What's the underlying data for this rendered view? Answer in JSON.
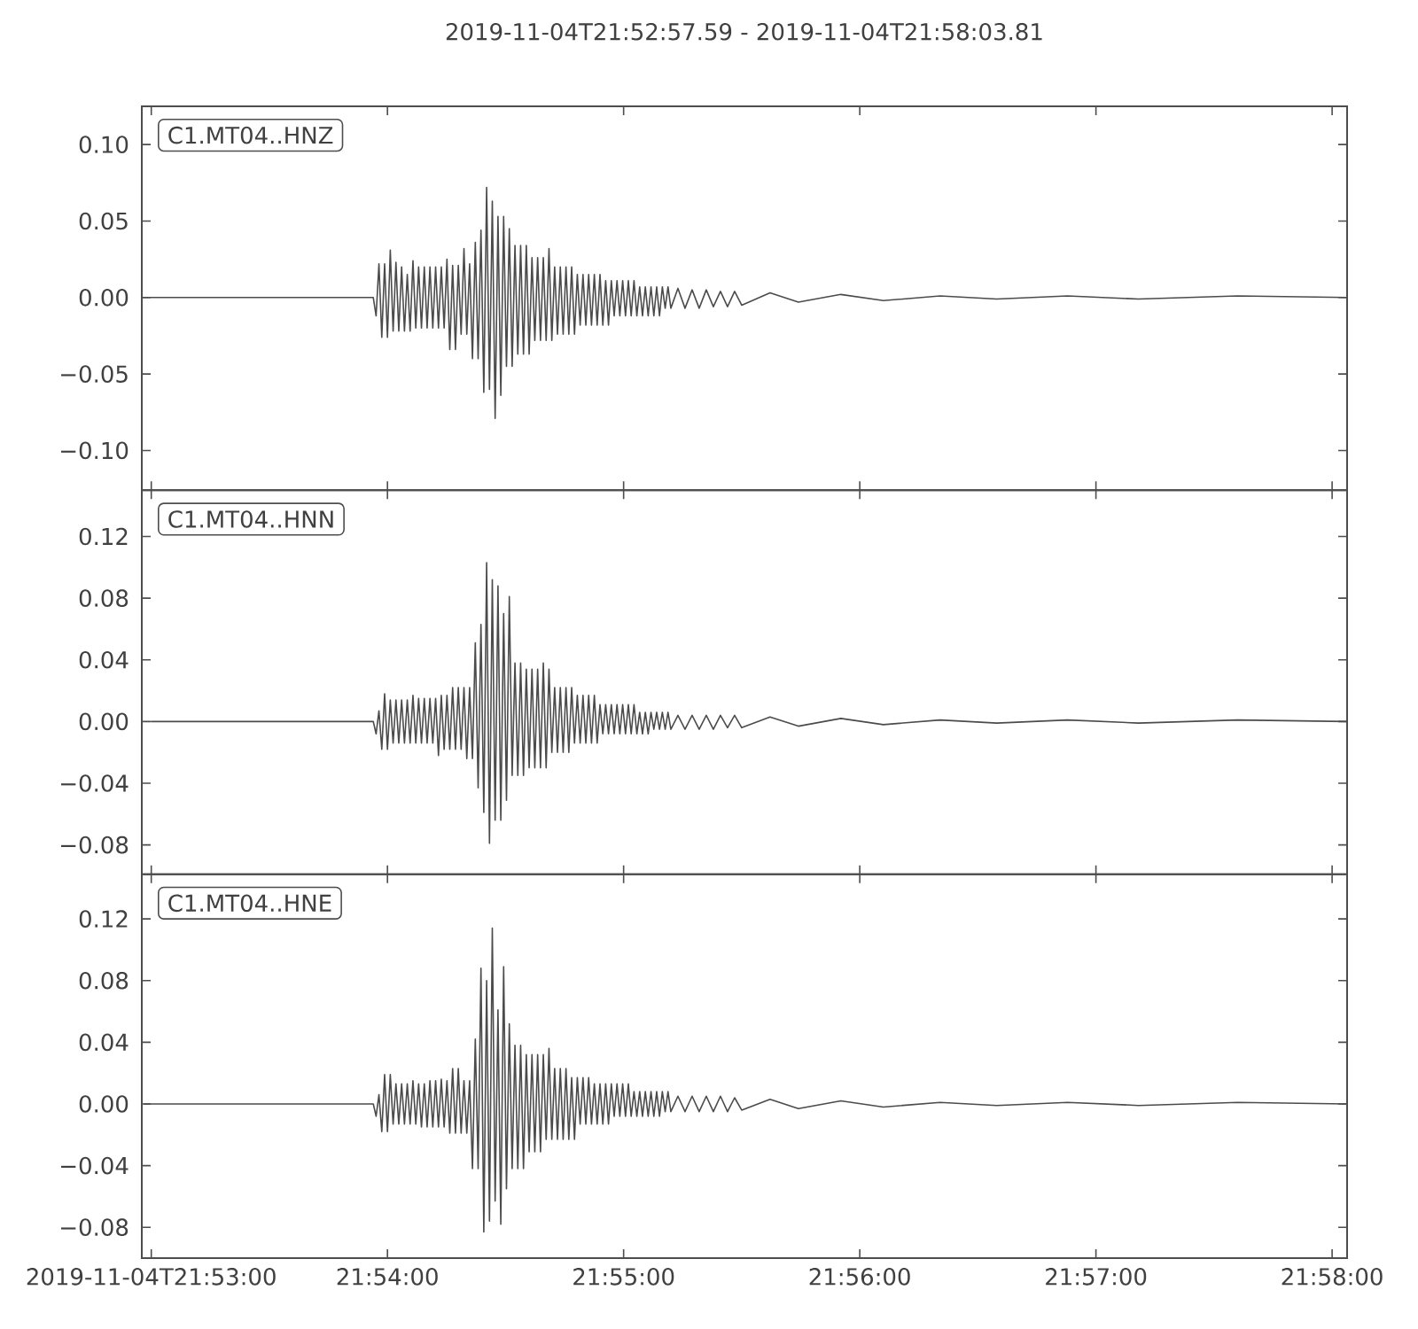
{
  "chart_data": [
    {
      "type": "line",
      "title": "2019-11-04T21:52:57.59 - 2019-11-04T21:58:03.81",
      "annotations": [
        "C1.MT04..HNZ"
      ],
      "color": "#4b4b4b",
      "tick_labels": "y",
      "xlim": [
        21.882664,
        21.967725
      ],
      "ylim": [
        -0.126,
        0.125
      ],
      "xticks": [
        {
          "value": 21.883333,
          "label": null
        },
        {
          "value": 21.9,
          "label": null
        },
        {
          "value": 21.916667,
          "label": null
        },
        {
          "value": 21.933333,
          "label": null
        },
        {
          "value": 21.95,
          "label": null
        },
        {
          "value": 21.966667,
          "label": null
        }
      ],
      "yticks": [
        {
          "value": -0.1,
          "label": "−0.10"
        },
        {
          "value": -0.05,
          "label": "−0.05"
        },
        {
          "value": 0,
          "label": "0.00"
        },
        {
          "value": 0.05,
          "label": "0.05"
        },
        {
          "value": 0.1,
          "label": "0.10"
        }
      ],
      "x": [
        21.8827,
        21.899,
        21.8992,
        21.8994,
        21.8996,
        21.8998,
        21.9,
        21.9002,
        21.9004,
        21.9006,
        21.9008,
        21.901,
        21.9012,
        21.9014,
        21.9016,
        21.9018,
        21.902,
        21.9022,
        21.9024,
        21.9026,
        21.9028,
        21.903,
        21.9032,
        21.9034,
        21.9036,
        21.9038,
        21.904,
        21.9042,
        21.9044,
        21.9046,
        21.9048,
        21.905,
        21.9052,
        21.9054,
        21.9056,
        21.9058,
        21.906,
        21.9062,
        21.9064,
        21.9066,
        21.9068,
        21.907,
        21.9072,
        21.9074,
        21.9076,
        21.9078,
        21.908,
        21.9082,
        21.9084,
        21.9086,
        21.9088,
        21.909,
        21.9092,
        21.9094,
        21.9096,
        21.9098,
        21.91,
        21.9102,
        21.9104,
        21.9106,
        21.9108,
        21.911,
        21.9112,
        21.9114,
        21.9116,
        21.9118,
        21.912,
        21.9122,
        21.9124,
        21.9126,
        21.9128,
        21.913,
        21.9132,
        21.9134,
        21.9136,
        21.9138,
        21.914,
        21.9142,
        21.9144,
        21.9146,
        21.9148,
        21.915,
        21.9152,
        21.9154,
        21.9156,
        21.9158,
        21.916,
        21.9162,
        21.9164,
        21.9166,
        21.9168,
        21.917,
        21.9172,
        21.9174,
        21.9176,
        21.9178,
        21.918,
        21.9182,
        21.9184,
        21.9186,
        21.9188,
        21.919,
        21.9192,
        21.9194,
        21.9196,
        21.9198,
        21.92,
        21.9205,
        21.921,
        21.9215,
        21.922,
        21.9225,
        21.923,
        21.9235,
        21.924,
        21.9245,
        21.925,
        21.927,
        21.929,
        21.932,
        21.935,
        21.939,
        21.943,
        21.948,
        21.953,
        21.96,
        21.9677
      ],
      "values": [
        0,
        0,
        -0.012,
        0.022,
        -0.026,
        0.022,
        -0.026,
        0.031,
        -0.022,
        0.023,
        -0.022,
        0.02,
        -0.022,
        0.015,
        -0.022,
        0.024,
        -0.02,
        0.02,
        -0.02,
        0.02,
        -0.02,
        0.02,
        -0.02,
        0.02,
        -0.02,
        0.02,
        -0.02,
        0.025,
        -0.034,
        0.021,
        -0.034,
        0.021,
        -0.024,
        0.032,
        -0.024,
        0.022,
        -0.04,
        0.036,
        -0.04,
        0.044,
        -0.062,
        0.072,
        -0.06,
        0.063,
        -0.079,
        0.053,
        -0.064,
        0.053,
        -0.045,
        0.045,
        -0.045,
        0.034,
        -0.037,
        0.034,
        -0.037,
        0.034,
        -0.037,
        0.026,
        -0.028,
        0.026,
        -0.028,
        0.026,
        -0.028,
        0.032,
        -0.028,
        0.02,
        -0.024,
        0.02,
        -0.024,
        0.02,
        -0.024,
        0.02,
        -0.024,
        0.015,
        -0.018,
        0.015,
        -0.018,
        0.015,
        -0.018,
        0.015,
        -0.018,
        0.015,
        -0.018,
        0.011,
        -0.018,
        0.011,
        -0.012,
        0.011,
        -0.012,
        0.011,
        -0.012,
        0.011,
        -0.012,
        0.011,
        -0.012,
        0.007,
        -0.012,
        0.007,
        -0.012,
        0.007,
        -0.012,
        0.007,
        -0.012,
        0.007,
        -0.007,
        0.007,
        -0.007,
        0.006,
        -0.007,
        0.005,
        -0.007,
        0.005,
        -0.006,
        0.004,
        -0.006,
        0.004,
        -0.005,
        0.003,
        -0.003,
        0.002,
        -0.002,
        0.001,
        -0.001,
        0.001,
        -0.001,
        0.001,
        0
      ]
    },
    {
      "type": "line",
      "annotations": [
        "C1.MT04..HNN"
      ],
      "color": "#4b4b4b",
      "tick_labels": "y",
      "xlim": [
        21.882664,
        21.967725
      ],
      "ylim": [
        -0.099,
        0.15
      ],
      "xticks": [
        {
          "value": 21.883333,
          "label": null
        },
        {
          "value": 21.9,
          "label": null
        },
        {
          "value": 21.916667,
          "label": null
        },
        {
          "value": 21.933333,
          "label": null
        },
        {
          "value": 21.95,
          "label": null
        },
        {
          "value": 21.966667,
          "label": null
        }
      ],
      "yticks": [
        {
          "value": -0.08,
          "label": "−0.08"
        },
        {
          "value": -0.04,
          "label": "−0.04"
        },
        {
          "value": 0,
          "label": "0.00"
        },
        {
          "value": 0.04,
          "label": "0.04"
        },
        {
          "value": 0.08,
          "label": "0.08"
        },
        {
          "value": 0.12,
          "label": "0.12"
        }
      ],
      "x": [
        21.8833,
        21.899,
        21.8992,
        21.8994,
        21.8996,
        21.8998,
        21.9,
        21.9002,
        21.9004,
        21.9006,
        21.9008,
        21.901,
        21.9012,
        21.9014,
        21.9016,
        21.9018,
        21.902,
        21.9022,
        21.9024,
        21.9026,
        21.9028,
        21.903,
        21.9032,
        21.9034,
        21.9036,
        21.9038,
        21.904,
        21.9042,
        21.9044,
        21.9046,
        21.9048,
        21.905,
        21.9052,
        21.9054,
        21.9056,
        21.9058,
        21.906,
        21.9062,
        21.9064,
        21.9066,
        21.9068,
        21.907,
        21.9072,
        21.9074,
        21.9076,
        21.9078,
        21.908,
        21.9082,
        21.9084,
        21.9086,
        21.9088,
        21.909,
        21.9092,
        21.9094,
        21.9096,
        21.9098,
        21.91,
        21.9102,
        21.9104,
        21.9106,
        21.9108,
        21.911,
        21.9112,
        21.9114,
        21.9116,
        21.9118,
        21.912,
        21.9122,
        21.9124,
        21.9126,
        21.9128,
        21.913,
        21.9132,
        21.9134,
        21.9136,
        21.9138,
        21.914,
        21.9142,
        21.9144,
        21.9146,
        21.9148,
        21.915,
        21.9152,
        21.9154,
        21.9156,
        21.9158,
        21.916,
        21.9162,
        21.9164,
        21.9166,
        21.9168,
        21.917,
        21.9172,
        21.9174,
        21.9176,
        21.9178,
        21.918,
        21.9182,
        21.9184,
        21.9186,
        21.9188,
        21.919,
        21.9192,
        21.9194,
        21.9196,
        21.9198,
        21.92,
        21.9205,
        21.921,
        21.9215,
        21.922,
        21.9225,
        21.923,
        21.9235,
        21.924,
        21.9245,
        21.925,
        21.927,
        21.929,
        21.932,
        21.935,
        21.939,
        21.943,
        21.948,
        21.953,
        21.96,
        21.9677
      ],
      "values": [
        0,
        0,
        -0.008,
        0.007,
        -0.018,
        0.018,
        -0.018,
        0.014,
        -0.014,
        0.014,
        -0.014,
        0.014,
        -0.014,
        0.014,
        -0.014,
        0.017,
        -0.014,
        0.015,
        -0.014,
        0.015,
        -0.014,
        0.015,
        -0.014,
        0.015,
        -0.022,
        0.017,
        -0.018,
        0.017,
        -0.018,
        0.022,
        -0.018,
        0.022,
        -0.018,
        0.022,
        -0.024,
        0.022,
        -0.024,
        0.051,
        -0.043,
        0.063,
        -0.059,
        0.103,
        -0.079,
        0.092,
        -0.064,
        0.088,
        -0.064,
        0.07,
        -0.051,
        0.081,
        -0.035,
        0.038,
        -0.035,
        0.038,
        -0.035,
        0.034,
        -0.03,
        0.034,
        -0.03,
        0.034,
        -0.03,
        0.038,
        -0.03,
        0.034,
        -0.02,
        0.022,
        -0.02,
        0.022,
        -0.02,
        0.022,
        -0.02,
        0.022,
        -0.014,
        0.017,
        -0.014,
        0.017,
        -0.014,
        0.017,
        -0.014,
        0.017,
        -0.014,
        0.011,
        -0.008,
        0.011,
        -0.008,
        0.011,
        -0.008,
        0.011,
        -0.008,
        0.011,
        -0.008,
        0.011,
        -0.008,
        0.011,
        -0.008,
        0.006,
        -0.008,
        0.006,
        -0.008,
        0.006,
        -0.005,
        0.006,
        -0.005,
        0.006,
        -0.005,
        0.006,
        -0.005,
        0.004,
        -0.005,
        0.004,
        -0.005,
        0.004,
        -0.005,
        0.004,
        -0.004,
        0.004,
        -0.004,
        0.003,
        -0.003,
        0.002,
        -0.002,
        0.001,
        -0.001,
        0.001,
        -0.001,
        0.001,
        0
      ]
    },
    {
      "type": "line",
      "annotations": [
        "C1.MT04..HNE"
      ],
      "color": "#4b4b4b",
      "xlim": [
        21.882664,
        21.967725
      ],
      "ylim": [
        -0.1,
        0.149
      ],
      "xticks": [
        {
          "value": 21.883333,
          "label": "2019-11-04T21:53:00"
        },
        {
          "value": 21.9,
          "label": "21:54:00"
        },
        {
          "value": 21.916667,
          "label": "21:55:00"
        },
        {
          "value": 21.933333,
          "label": "21:56:00"
        },
        {
          "value": 21.95,
          "label": "21:57:00"
        },
        {
          "value": 21.966667,
          "label": "21:58:00"
        }
      ],
      "yticks": [
        {
          "value": -0.08,
          "label": "−0.08"
        },
        {
          "value": -0.04,
          "label": "−0.04"
        },
        {
          "value": 0,
          "label": "0.00"
        },
        {
          "value": 0.04,
          "label": "0.04"
        },
        {
          "value": 0.08,
          "label": "0.08"
        },
        {
          "value": 0.12,
          "label": "0.12"
        }
      ],
      "x": [
        21.8828,
        21.899,
        21.8992,
        21.8994,
        21.8996,
        21.8998,
        21.9,
        21.9002,
        21.9004,
        21.9006,
        21.9008,
        21.901,
        21.9012,
        21.9014,
        21.9016,
        21.9018,
        21.902,
        21.9022,
        21.9024,
        21.9026,
        21.9028,
        21.903,
        21.9032,
        21.9034,
        21.9036,
        21.9038,
        21.904,
        21.9042,
        21.9044,
        21.9046,
        21.9048,
        21.905,
        21.9052,
        21.9054,
        21.9056,
        21.9058,
        21.906,
        21.9062,
        21.9064,
        21.9066,
        21.9068,
        21.907,
        21.9072,
        21.9074,
        21.9076,
        21.9078,
        21.908,
        21.9082,
        21.9084,
        21.9086,
        21.9088,
        21.909,
        21.9092,
        21.9094,
        21.9096,
        21.9098,
        21.91,
        21.9102,
        21.9104,
        21.9106,
        21.9108,
        21.911,
        21.9112,
        21.9114,
        21.9116,
        21.9118,
        21.912,
        21.9122,
        21.9124,
        21.9126,
        21.9128,
        21.913,
        21.9132,
        21.9134,
        21.9136,
        21.9138,
        21.914,
        21.9142,
        21.9144,
        21.9146,
        21.9148,
        21.915,
        21.9152,
        21.9154,
        21.9156,
        21.9158,
        21.916,
        21.9162,
        21.9164,
        21.9166,
        21.9168,
        21.917,
        21.9172,
        21.9174,
        21.9176,
        21.9178,
        21.918,
        21.9182,
        21.9184,
        21.9186,
        21.9188,
        21.919,
        21.9192,
        21.9194,
        21.9196,
        21.9198,
        21.92,
        21.9205,
        21.921,
        21.9215,
        21.922,
        21.9225,
        21.923,
        21.9235,
        21.924,
        21.9245,
        21.925,
        21.927,
        21.929,
        21.932,
        21.935,
        21.939,
        21.943,
        21.948,
        21.953,
        21.96,
        21.9677
      ],
      "values": [
        0,
        0,
        -0.008,
        0.006,
        -0.018,
        0.019,
        -0.018,
        0.019,
        -0.013,
        0.013,
        -0.013,
        0.013,
        -0.013,
        0.013,
        -0.013,
        0.015,
        -0.013,
        0.013,
        -0.015,
        0.013,
        -0.015,
        0.015,
        -0.015,
        0.015,
        -0.015,
        0.016,
        -0.015,
        0.015,
        -0.019,
        0.023,
        -0.019,
        0.023,
        -0.019,
        0.015,
        -0.019,
        0.015,
        -0.042,
        0.042,
        -0.042,
        0.088,
        -0.083,
        0.08,
        -0.076,
        0.114,
        -0.063,
        0.061,
        -0.078,
        0.089,
        -0.055,
        0.052,
        -0.042,
        0.038,
        -0.042,
        0.038,
        -0.042,
        0.032,
        -0.031,
        0.032,
        -0.031,
        0.032,
        -0.031,
        0.032,
        -0.023,
        0.036,
        -0.023,
        0.023,
        -0.023,
        0.023,
        -0.023,
        0.023,
        -0.023,
        0.017,
        -0.023,
        0.017,
        -0.013,
        0.017,
        -0.013,
        0.017,
        -0.013,
        0.013,
        -0.013,
        0.013,
        -0.013,
        0.013,
        -0.013,
        0.013,
        -0.008,
        0.013,
        -0.008,
        0.013,
        -0.008,
        0.013,
        -0.008,
        0.008,
        -0.008,
        0.008,
        -0.008,
        0.008,
        -0.008,
        0.008,
        -0.008,
        0.008,
        -0.008,
        0.008,
        -0.005,
        0.008,
        -0.005,
        0.005,
        -0.005,
        0.005,
        -0.005,
        0.005,
        -0.005,
        0.005,
        -0.005,
        0.004,
        -0.004,
        0.003,
        -0.003,
        0.002,
        -0.002,
        0.001,
        -0.001,
        0.001,
        -0.001,
        0.001,
        0
      ]
    }
  ]
}
